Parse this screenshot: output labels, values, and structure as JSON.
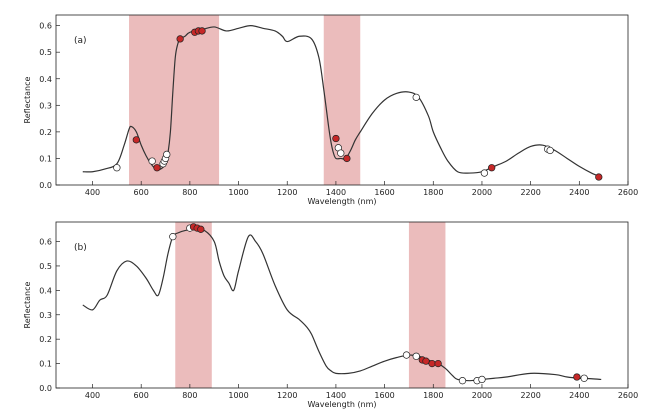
{
  "chart_data": [
    {
      "type": "line",
      "panel_label": "(a)",
      "xlabel": "Wavelength (nm)",
      "ylabel": "Reflectance",
      "xlim": [
        250,
        2600
      ],
      "ylim": [
        0,
        0.64
      ],
      "xticks": [
        400,
        600,
        800,
        1000,
        1200,
        1400,
        1600,
        1800,
        2000,
        2200,
        2400,
        2600
      ],
      "yticks": [
        0.0,
        0.1,
        0.2,
        0.3,
        0.4,
        0.5,
        0.6
      ],
      "grid": false,
      "highlight_bands": [
        [
          550,
          920
        ],
        [
          1350,
          1500
        ]
      ],
      "band_color": "#e8b0b0",
      "line_color": "#333333",
      "spectrum": {
        "x": [
          360,
          400,
          450,
          500,
          530,
          550,
          560,
          580,
          600,
          620,
          640,
          660,
          680,
          700,
          710,
          720,
          730,
          740,
          750,
          760,
          780,
          800,
          850,
          900,
          950,
          1000,
          1050,
          1100,
          1150,
          1180,
          1200,
          1250,
          1300,
          1330,
          1350,
          1370,
          1380,
          1390,
          1400,
          1420,
          1440,
          1460,
          1480,
          1500,
          1550,
          1600,
          1650,
          1700,
          1740,
          1780,
          1800,
          1830,
          1860,
          1900,
          1950,
          2000,
          2050,
          2100,
          2150,
          2200,
          2250,
          2300,
          2350,
          2400,
          2450,
          2490
        ],
        "y": [
          0.05,
          0.05,
          0.06,
          0.08,
          0.15,
          0.21,
          0.22,
          0.2,
          0.15,
          0.11,
          0.08,
          0.06,
          0.06,
          0.08,
          0.12,
          0.2,
          0.35,
          0.48,
          0.53,
          0.55,
          0.56,
          0.575,
          0.585,
          0.595,
          0.58,
          0.59,
          0.6,
          0.59,
          0.58,
          0.56,
          0.54,
          0.56,
          0.55,
          0.48,
          0.36,
          0.22,
          0.16,
          0.12,
          0.1,
          0.1,
          0.1,
          0.13,
          0.17,
          0.2,
          0.27,
          0.32,
          0.345,
          0.35,
          0.33,
          0.26,
          0.2,
          0.14,
          0.09,
          0.05,
          0.045,
          0.05,
          0.07,
          0.09,
          0.12,
          0.145,
          0.15,
          0.13,
          0.1,
          0.07,
          0.045,
          0.03
        ]
      },
      "marked_points": [
        {
          "x": 500,
          "y": 0.065,
          "fill": "white"
        },
        {
          "x": 580,
          "y": 0.17,
          "fill": "red"
        },
        {
          "x": 645,
          "y": 0.09,
          "fill": "white"
        },
        {
          "x": 665,
          "y": 0.065,
          "fill": "red"
        },
        {
          "x": 690,
          "y": 0.08,
          "fill": "white"
        },
        {
          "x": 695,
          "y": 0.09,
          "fill": "white"
        },
        {
          "x": 700,
          "y": 0.1,
          "fill": "white"
        },
        {
          "x": 705,
          "y": 0.115,
          "fill": "white"
        },
        {
          "x": 760,
          "y": 0.55,
          "fill": "red"
        },
        {
          "x": 820,
          "y": 0.575,
          "fill": "red"
        },
        {
          "x": 835,
          "y": 0.58,
          "fill": "red"
        },
        {
          "x": 850,
          "y": 0.58,
          "fill": "red"
        },
        {
          "x": 1400,
          "y": 0.175,
          "fill": "red"
        },
        {
          "x": 1410,
          "y": 0.14,
          "fill": "white"
        },
        {
          "x": 1420,
          "y": 0.12,
          "fill": "white"
        },
        {
          "x": 1445,
          "y": 0.1,
          "fill": "red"
        },
        {
          "x": 1730,
          "y": 0.33,
          "fill": "white"
        },
        {
          "x": 2010,
          "y": 0.045,
          "fill": "white"
        },
        {
          "x": 2040,
          "y": 0.065,
          "fill": "red"
        },
        {
          "x": 2270,
          "y": 0.135,
          "fill": "white"
        },
        {
          "x": 2280,
          "y": 0.13,
          "fill": "white"
        },
        {
          "x": 2480,
          "y": 0.03,
          "fill": "red"
        }
      ]
    },
    {
      "type": "line",
      "panel_label": "(b)",
      "xlabel": "Wavelength (nm)",
      "ylabel": "Reflectance",
      "xlim": [
        250,
        2600
      ],
      "ylim": [
        0,
        0.68
      ],
      "xticks": [
        400,
        600,
        800,
        1000,
        1200,
        1400,
        1600,
        1800,
        2000,
        2200,
        2400,
        2600
      ],
      "yticks": [
        0.0,
        0.1,
        0.2,
        0.3,
        0.4,
        0.5,
        0.6
      ],
      "grid": false,
      "highlight_bands": [
        [
          740,
          890
        ],
        [
          1700,
          1850
        ]
      ],
      "band_color": "#e8b0b0",
      "line_color": "#333333",
      "spectrum": {
        "x": [
          360,
          400,
          430,
          460,
          500,
          540,
          580,
          620,
          650,
          670,
          690,
          710,
          730,
          750,
          780,
          820,
          860,
          900,
          920,
          940,
          960,
          980,
          1000,
          1040,
          1070,
          1100,
          1150,
          1200,
          1250,
          1280,
          1300,
          1330,
          1360,
          1380,
          1400,
          1450,
          1500,
          1550,
          1600,
          1650,
          1700,
          1740,
          1770,
          1800,
          1820,
          1850,
          1880,
          1900,
          1950,
          2000,
          2050,
          2100,
          2200,
          2300,
          2350,
          2400,
          2450,
          2490
        ],
        "y": [
          0.34,
          0.32,
          0.36,
          0.38,
          0.48,
          0.52,
          0.5,
          0.45,
          0.4,
          0.38,
          0.45,
          0.55,
          0.62,
          0.635,
          0.645,
          0.65,
          0.645,
          0.6,
          0.52,
          0.46,
          0.43,
          0.4,
          0.48,
          0.62,
          0.6,
          0.55,
          0.42,
          0.32,
          0.28,
          0.25,
          0.22,
          0.15,
          0.09,
          0.07,
          0.06,
          0.06,
          0.07,
          0.09,
          0.11,
          0.125,
          0.135,
          0.13,
          0.12,
          0.105,
          0.1,
          0.08,
          0.05,
          0.035,
          0.03,
          0.035,
          0.04,
          0.045,
          0.06,
          0.055,
          0.045,
          0.04,
          0.038,
          0.035
        ]
      },
      "marked_points": [
        {
          "x": 730,
          "y": 0.62,
          "fill": "white"
        },
        {
          "x": 800,
          "y": 0.655,
          "fill": "white"
        },
        {
          "x": 815,
          "y": 0.66,
          "fill": "red"
        },
        {
          "x": 830,
          "y": 0.655,
          "fill": "red"
        },
        {
          "x": 845,
          "y": 0.65,
          "fill": "red"
        },
        {
          "x": 1690,
          "y": 0.135,
          "fill": "white"
        },
        {
          "x": 1730,
          "y": 0.13,
          "fill": "white"
        },
        {
          "x": 1755,
          "y": 0.115,
          "fill": "red"
        },
        {
          "x": 1770,
          "y": 0.11,
          "fill": "red"
        },
        {
          "x": 1795,
          "y": 0.1,
          "fill": "red"
        },
        {
          "x": 1820,
          "y": 0.1,
          "fill": "red"
        },
        {
          "x": 1920,
          "y": 0.03,
          "fill": "white"
        },
        {
          "x": 1980,
          "y": 0.03,
          "fill": "white"
        },
        {
          "x": 2000,
          "y": 0.035,
          "fill": "white"
        },
        {
          "x": 2390,
          "y": 0.045,
          "fill": "red"
        },
        {
          "x": 2420,
          "y": 0.04,
          "fill": "white"
        }
      ]
    }
  ],
  "colors": {
    "red_marker": "#c62828",
    "white_marker": "#ffffff",
    "marker_edge": "#222222",
    "axis": "#222222"
  }
}
